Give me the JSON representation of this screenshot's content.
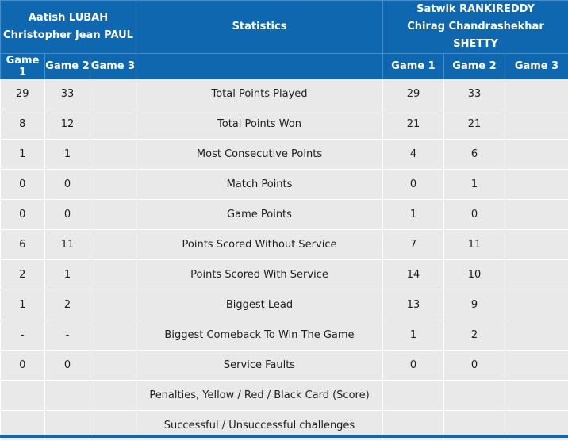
{
  "team_left": {
    "player1": "Aatish LUBAH",
    "player2": "Christopher Jean PAUL"
  },
  "center_header": "Statistics",
  "team_right": {
    "player1": "Satwik RANKIREDDY",
    "player2": "Chirag Chandrashekhar SHETTY"
  },
  "game_headers": [
    "Game 1",
    "Game 2",
    "Game 3"
  ],
  "rows": [
    {
      "label": "Total Points Played",
      "left": [
        "29",
        "33",
        ""
      ],
      "right": [
        "29",
        "33",
        ""
      ]
    },
    {
      "label": "Total Points Won",
      "left": [
        "8",
        "12",
        ""
      ],
      "right": [
        "21",
        "21",
        ""
      ]
    },
    {
      "label": "Most Consecutive Points",
      "left": [
        "1",
        "1",
        ""
      ],
      "right": [
        "4",
        "6",
        ""
      ]
    },
    {
      "label": "Match Points",
      "left": [
        "0",
        "0",
        ""
      ],
      "right": [
        "0",
        "1",
        ""
      ]
    },
    {
      "label": "Game Points",
      "left": [
        "0",
        "0",
        ""
      ],
      "right": [
        "1",
        "0",
        ""
      ]
    },
    {
      "label": "Points Scored Without Service",
      "left": [
        "6",
        "11",
        ""
      ],
      "right": [
        "7",
        "11",
        ""
      ]
    },
    {
      "label": "Points Scored With Service",
      "left": [
        "2",
        "1",
        ""
      ],
      "right": [
        "14",
        "10",
        ""
      ]
    },
    {
      "label": "Biggest Lead",
      "left": [
        "1",
        "2",
        ""
      ],
      "right": [
        "13",
        "9",
        ""
      ]
    },
    {
      "label": "Biggest Comeback To Win The Game",
      "left": [
        "-",
        "-",
        ""
      ],
      "right": [
        "1",
        "2",
        ""
      ]
    },
    {
      "label": "Service Faults",
      "left": [
        "0",
        "0",
        ""
      ],
      "right": [
        "0",
        "0",
        ""
      ]
    },
    {
      "label": "Penalties, Yellow / Red / Black Card (Score)",
      "left": [
        "",
        "",
        ""
      ],
      "right": [
        "",
        "",
        ""
      ]
    },
    {
      "label": "Successful / Unsuccessful challenges",
      "left": [
        "",
        "",
        ""
      ],
      "right": [
        "",
        "",
        ""
      ]
    }
  ]
}
